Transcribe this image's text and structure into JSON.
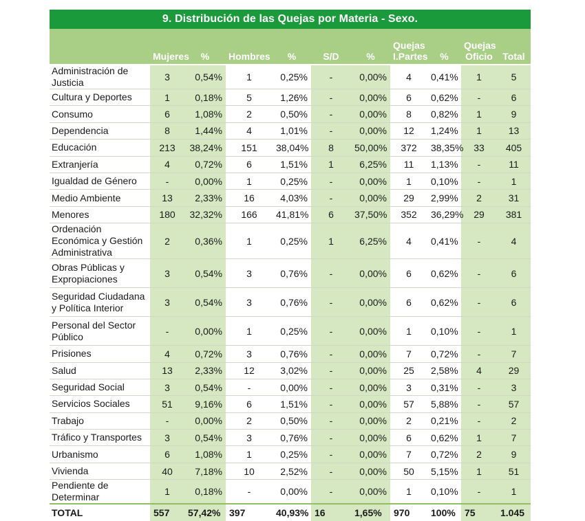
{
  "title": "9. Distribución de las Quejas por Materia - Sexo.",
  "columns": {
    "mujeres": "Mujeres",
    "mujeres_pct": "%",
    "hombres": "Hombres",
    "hombres_pct": "%",
    "sd": "S/D",
    "sd_pct": "%",
    "iparte_line1": "Quejas",
    "iparte_line2": "I.Partes",
    "iparte_pct": "%",
    "oficio_line1": "Quejas",
    "oficio_line2": "Oficio",
    "total": "Total"
  },
  "rows": [
    {
      "materia": "Administración de Justicia",
      "mujeres": "3",
      "mujeres_pct": "0,54%",
      "hombres": "1",
      "hombres_pct": "0,25%",
      "sd": "-",
      "sd_pct": "0,00%",
      "iparte": "4",
      "iparte_pct": "0,41%",
      "oficio": "1",
      "total": "5"
    },
    {
      "materia": "Cultura y Deportes",
      "mujeres": "1",
      "mujeres_pct": "0,18%",
      "hombres": "5",
      "hombres_pct": "1,26%",
      "sd": "-",
      "sd_pct": "0,00%",
      "iparte": "6",
      "iparte_pct": "0,62%",
      "oficio": "-",
      "total": "6"
    },
    {
      "materia": "Consumo",
      "mujeres": "6",
      "mujeres_pct": "1,08%",
      "hombres": "2",
      "hombres_pct": "0,50%",
      "sd": "-",
      "sd_pct": "0,00%",
      "iparte": "8",
      "iparte_pct": "0,82%",
      "oficio": "1",
      "total": "9"
    },
    {
      "materia": "Dependencia",
      "mujeres": "8",
      "mujeres_pct": "1,44%",
      "hombres": "4",
      "hombres_pct": "1,01%",
      "sd": "-",
      "sd_pct": "0,00%",
      "iparte": "12",
      "iparte_pct": "1,24%",
      "oficio": "1",
      "total": "13"
    },
    {
      "materia": "Educación",
      "mujeres": "213",
      "mujeres_pct": "38,24%",
      "hombres": "151",
      "hombres_pct": "38,04%",
      "sd": "8",
      "sd_pct": "50,00%",
      "iparte": "372",
      "iparte_pct": "38,35%",
      "oficio": "33",
      "total": "405"
    },
    {
      "materia": "Extranjería",
      "mujeres": "4",
      "mujeres_pct": "0,72%",
      "hombres": "6",
      "hombres_pct": "1,51%",
      "sd": "1",
      "sd_pct": "6,25%",
      "iparte": "11",
      "iparte_pct": "1,13%",
      "oficio": "-",
      "total": "11"
    },
    {
      "materia": "Igualdad de Género",
      "mujeres": "-",
      "mujeres_pct": "0,00%",
      "hombres": "1",
      "hombres_pct": "0,25%",
      "sd": "-",
      "sd_pct": "0,00%",
      "iparte": "1",
      "iparte_pct": "0,10%",
      "oficio": "-",
      "total": "1"
    },
    {
      "materia": "Medio Ambiente",
      "mujeres": "13",
      "mujeres_pct": "2,33%",
      "hombres": "16",
      "hombres_pct": "4,03%",
      "sd": "-",
      "sd_pct": "0,00%",
      "iparte": "29",
      "iparte_pct": "2,99%",
      "oficio": "2",
      "total": "31"
    },
    {
      "materia": "Menores",
      "mujeres": "180",
      "mujeres_pct": "32,32%",
      "hombres": "166",
      "hombres_pct": "41,81%",
      "sd": "6",
      "sd_pct": "37,50%",
      "iparte": "352",
      "iparte_pct": "36,29%",
      "oficio": "29",
      "total": "381"
    },
    {
      "materia": "Ordenación Económica y Gestión Administrativa",
      "mujeres": "2",
      "mujeres_pct": "0,36%",
      "hombres": "1",
      "hombres_pct": "0,25%",
      "sd": "1",
      "sd_pct": "6,25%",
      "iparte": "4",
      "iparte_pct": "0,41%",
      "oficio": "-",
      "total": "4"
    },
    {
      "materia": "Obras Públicas y Expropiaciones",
      "mujeres": "3",
      "mujeres_pct": "0,54%",
      "hombres": "3",
      "hombres_pct": "0,76%",
      "sd": "-",
      "sd_pct": "0,00%",
      "iparte": "6",
      "iparte_pct": "0,62%",
      "oficio": "-",
      "total": "6"
    },
    {
      "materia": "Seguridad Ciudadana y Política Interior",
      "mujeres": "3",
      "mujeres_pct": "0,54%",
      "hombres": "3",
      "hombres_pct": "0,76%",
      "sd": "-",
      "sd_pct": "0,00%",
      "iparte": "6",
      "iparte_pct": "0,62%",
      "oficio": "-",
      "total": "6"
    },
    {
      "materia": "Personal del Sector Público",
      "mujeres": "-",
      "mujeres_pct": "0,00%",
      "hombres": "1",
      "hombres_pct": "0,25%",
      "sd": "-",
      "sd_pct": "0,00%",
      "iparte": "1",
      "iparte_pct": "0,10%",
      "oficio": "-",
      "total": "1"
    },
    {
      "materia": "Prisiones",
      "mujeres": "4",
      "mujeres_pct": "0,72%",
      "hombres": "3",
      "hombres_pct": "0,76%",
      "sd": "-",
      "sd_pct": "0,00%",
      "iparte": "7",
      "iparte_pct": "0,72%",
      "oficio": "-",
      "total": "7"
    },
    {
      "materia": "Salud",
      "mujeres": "13",
      "mujeres_pct": "2,33%",
      "hombres": "12",
      "hombres_pct": "3,02%",
      "sd": "-",
      "sd_pct": "0,00%",
      "iparte": "25",
      "iparte_pct": "2,58%",
      "oficio": "4",
      "total": "29"
    },
    {
      "materia": "Seguridad Social",
      "mujeres": "3",
      "mujeres_pct": "0,54%",
      "hombres": "-",
      "hombres_pct": "0,00%",
      "sd": "-",
      "sd_pct": "0,00%",
      "iparte": "3",
      "iparte_pct": "0,31%",
      "oficio": "-",
      "total": "3"
    },
    {
      "materia": "Servicios Sociales",
      "mujeres": "51",
      "mujeres_pct": "9,16%",
      "hombres": "6",
      "hombres_pct": "1,51%",
      "sd": "-",
      "sd_pct": "0,00%",
      "iparte": "57",
      "iparte_pct": "5,88%",
      "oficio": "-",
      "total": "57"
    },
    {
      "materia": "Trabajo",
      "mujeres": "-",
      "mujeres_pct": "0,00%",
      "hombres": "2",
      "hombres_pct": "0,50%",
      "sd": "-",
      "sd_pct": "0,00%",
      "iparte": "2",
      "iparte_pct": "0,21%",
      "oficio": "-",
      "total": "2"
    },
    {
      "materia": "Tráfico y Transportes",
      "mujeres": "3",
      "mujeres_pct": "0,54%",
      "hombres": "3",
      "hombres_pct": "0,76%",
      "sd": "-",
      "sd_pct": "0,00%",
      "iparte": "6",
      "iparte_pct": "0,62%",
      "oficio": "1",
      "total": "7"
    },
    {
      "materia": "Urbanismo",
      "mujeres": "6",
      "mujeres_pct": "1,08%",
      "hombres": "1",
      "hombres_pct": "0,25%",
      "sd": "-",
      "sd_pct": "0,00%",
      "iparte": "7",
      "iparte_pct": "0,72%",
      "oficio": "2",
      "total": "9"
    },
    {
      "materia": "Vivienda",
      "mujeres": "40",
      "mujeres_pct": "7,18%",
      "hombres": "10",
      "hombres_pct": "2,52%",
      "sd": "-",
      "sd_pct": "0,00%",
      "iparte": "50",
      "iparte_pct": "5,15%",
      "oficio": "1",
      "total": "51"
    },
    {
      "materia": "Pendiente de Determinar",
      "mujeres": "1",
      "mujeres_pct": "0,18%",
      "hombres": "-",
      "hombres_pct": "0,00%",
      "sd": "-",
      "sd_pct": "0,00%",
      "iparte": "1",
      "iparte_pct": "0,10%",
      "oficio": "-",
      "total": "1"
    }
  ],
  "totals": {
    "label": "TOTAL",
    "mujeres": "557",
    "mujeres_pct": "57,42%",
    "hombres": "397",
    "hombres_pct": "40,93%",
    "sd": "16",
    "sd_pct": "1,65%",
    "iparte": "970",
    "iparte_pct": "100%",
    "oficio": "75",
    "total": "1.045"
  },
  "colors": {
    "title_bg": "#1b9a3c",
    "header_bg": "#a9cf86",
    "shaded_column": "#d6e8c2"
  }
}
